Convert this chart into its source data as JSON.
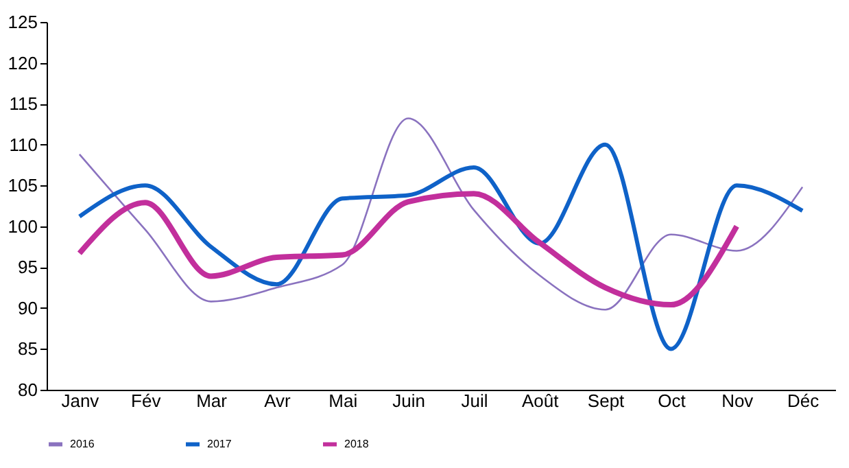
{
  "chart_data": {
    "type": "line",
    "categories": [
      "Janv",
      "Fév",
      "Mar",
      "Avr",
      "Mai",
      "Juin",
      "Juil",
      "Août",
      "Sept",
      "Oct",
      "Nov",
      "Déc"
    ],
    "series": [
      {
        "name": "2016",
        "color": "#8a72bf",
        "values": [
          108.8,
          99.6,
          90.8,
          92.5,
          95.3,
          113.2,
          102,
          94,
          89.8,
          99,
          97,
          104.8
        ]
      },
      {
        "name": "2017",
        "color": "#0f62c8",
        "values": [
          101.2,
          105,
          97.5,
          92.9,
          103.4,
          103.8,
          107.2,
          97.9,
          110,
          85,
          105,
          101.9
        ]
      },
      {
        "name": "2018",
        "color": "#c22f9c",
        "values": [
          96.7,
          102.9,
          93.9,
          96.2,
          96.5,
          103,
          104,
          98,
          92.5,
          90.4,
          100,
          null
        ]
      }
    ],
    "ylim": [
      80,
      125
    ],
    "yticks": [
      80,
      85,
      90,
      95,
      100,
      105,
      110,
      115,
      120,
      125
    ],
    "grid": false,
    "legend": "bottom",
    "marker": "none",
    "line_style": "solid"
  }
}
